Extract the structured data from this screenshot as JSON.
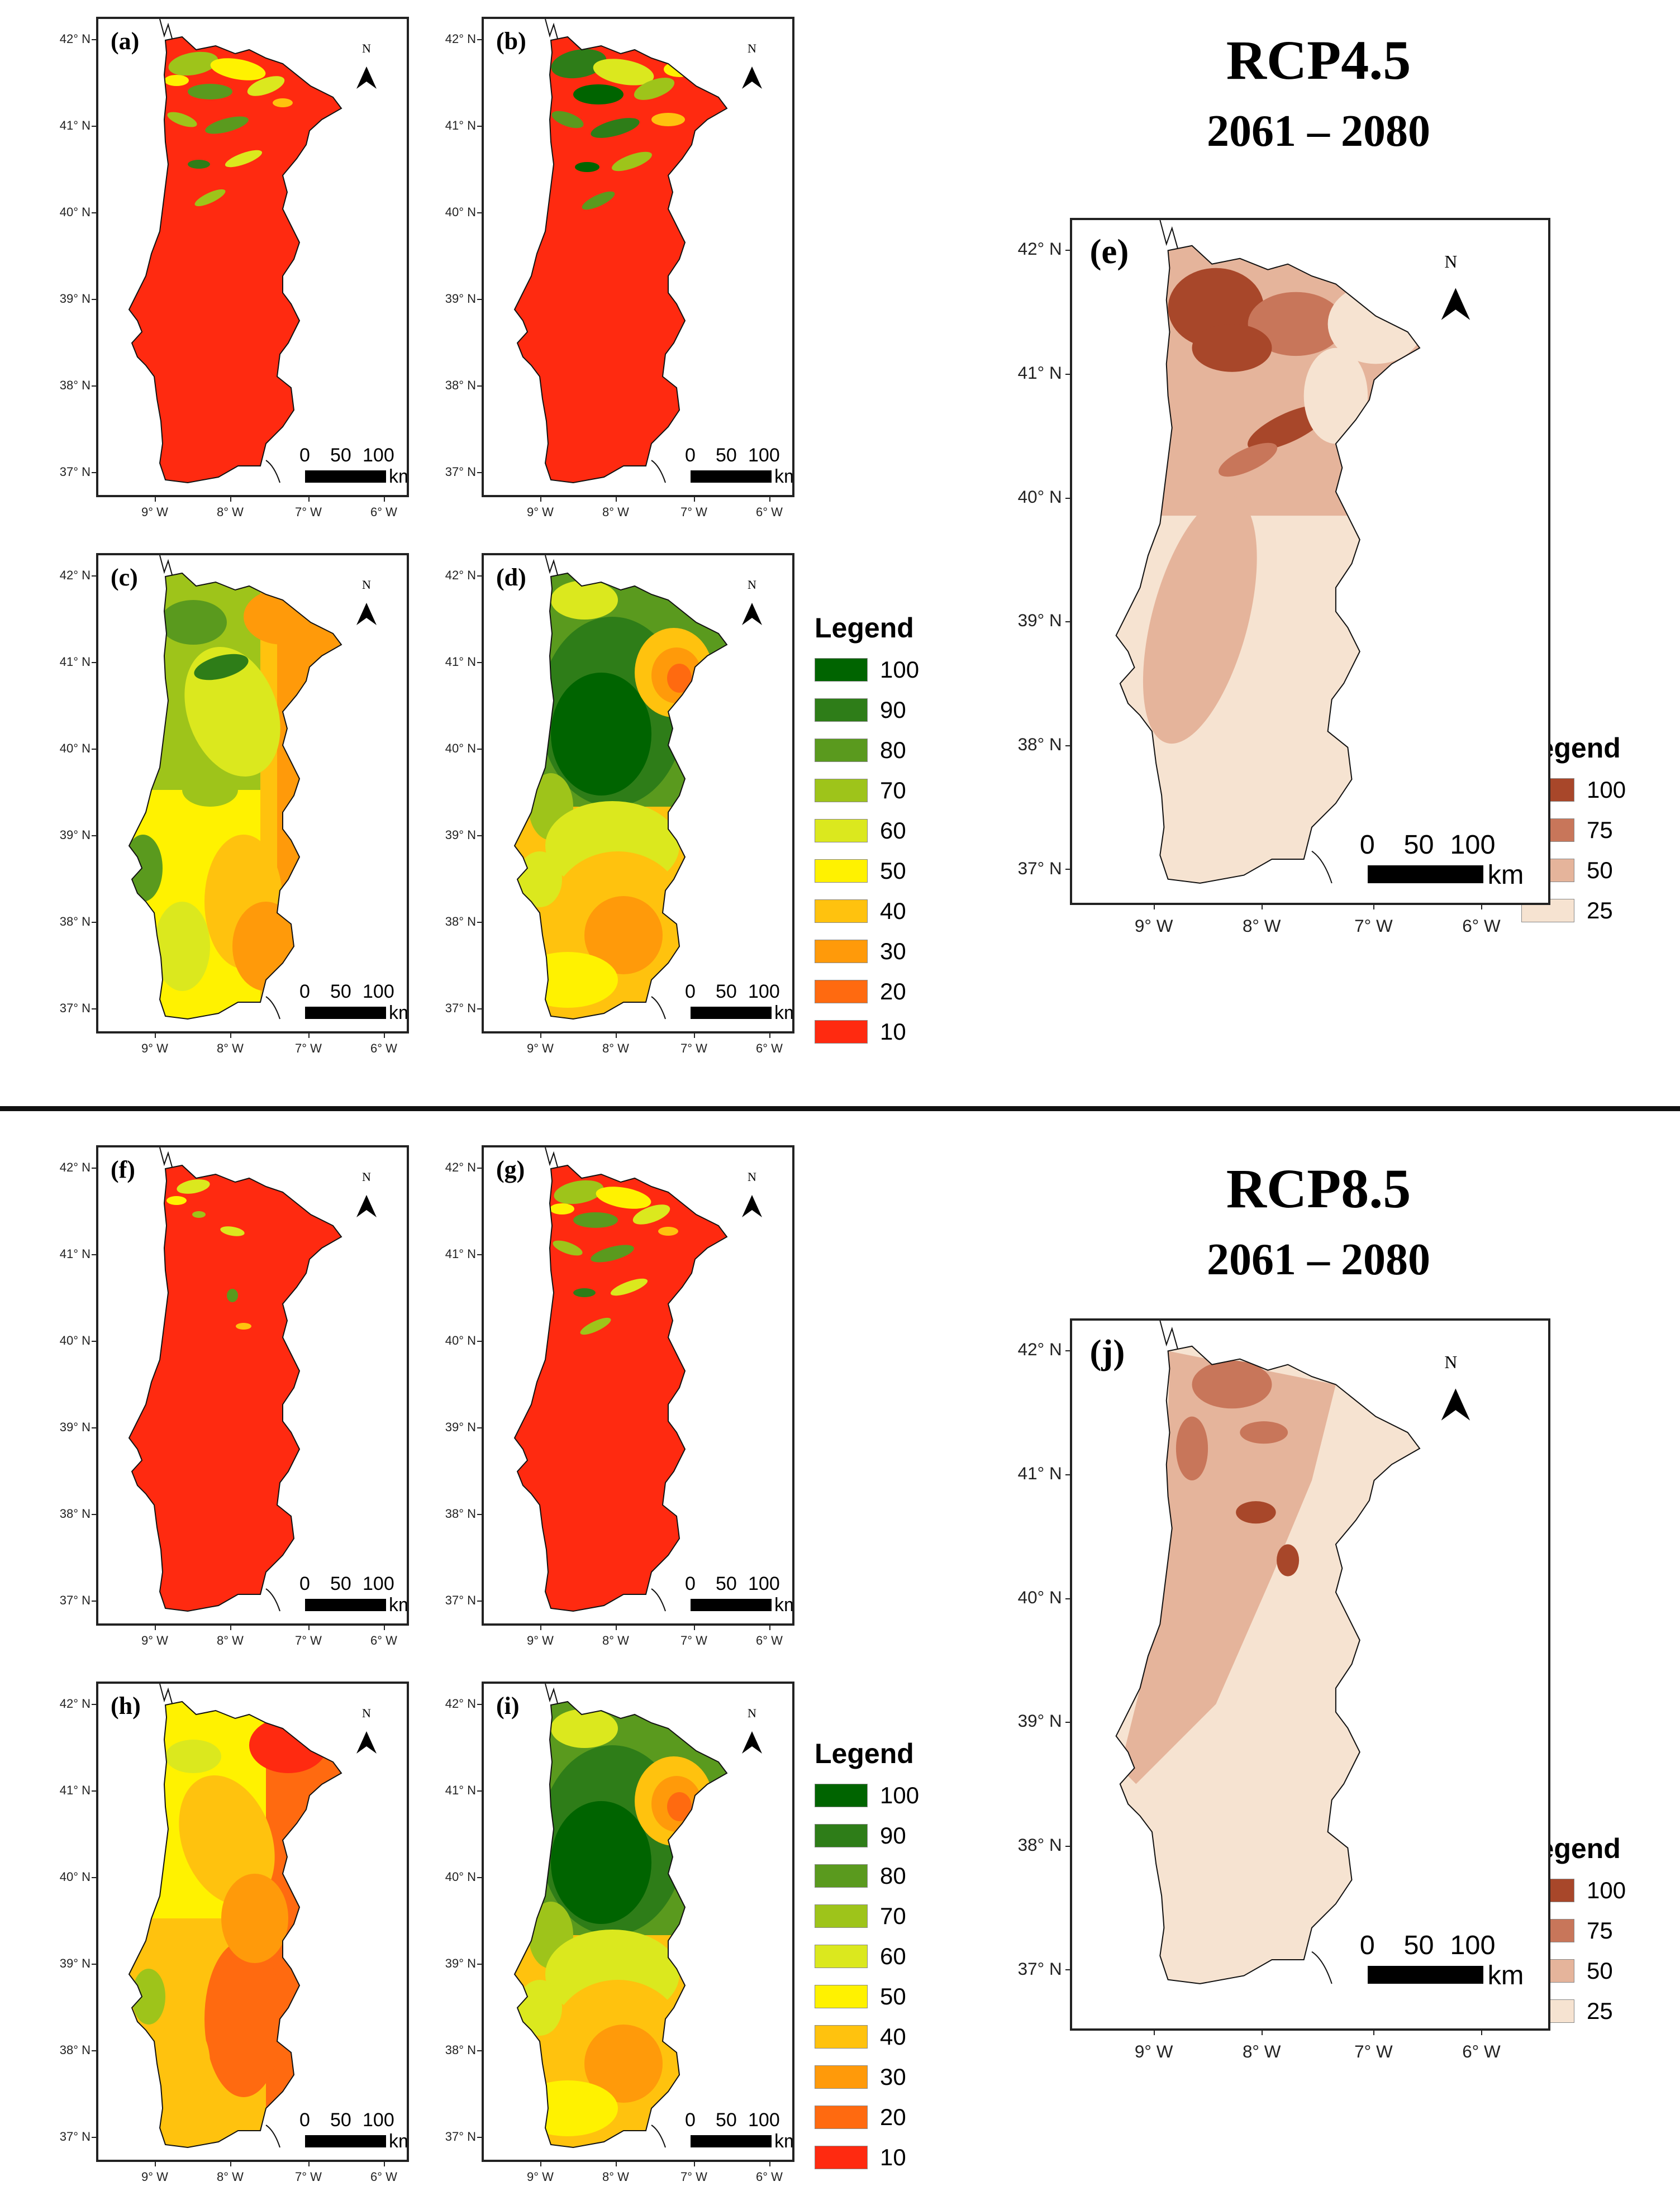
{
  "rcp45": {
    "title": "RCP4.5",
    "period": "2061 – 2080"
  },
  "rcp85": {
    "title": "RCP8.5",
    "period": "2061 –  2080"
  },
  "axes": {
    "lat_labels": [
      "42° N",
      "41° N",
      "40° N",
      "39° N",
      "38° N",
      "37° N"
    ],
    "lon_labels": [
      "9° W",
      "8° W",
      "7° W",
      "6° W"
    ]
  },
  "north": "N",
  "scale": {
    "zero": "0",
    "mid": "50",
    "end": "100",
    "unit": "km"
  },
  "panels": [
    {
      "id": "a",
      "label": "(a)",
      "scheme": "suit",
      "pattern": "red_mountain_green"
    },
    {
      "id": "b",
      "label": "(b)",
      "scheme": "suit",
      "pattern": "red_mountain_green_more"
    },
    {
      "id": "c",
      "label": "(c)",
      "scheme": "suit",
      "pattern": "gradient_yellow_orange"
    },
    {
      "id": "d",
      "label": "(d)",
      "scheme": "suit",
      "pattern": "smooth_green_north"
    },
    {
      "id": "e",
      "label": "(e)",
      "scheme": "agree",
      "pattern": "agree_north"
    },
    {
      "id": "f",
      "label": "(f)",
      "scheme": "suit",
      "pattern": "red_mostly"
    },
    {
      "id": "g",
      "label": "(g)",
      "scheme": "suit",
      "pattern": "red_mountain_green"
    },
    {
      "id": "h",
      "label": "(h)",
      "scheme": "suit",
      "pattern": "gradient_orange"
    },
    {
      "id": "i",
      "label": "(i)",
      "scheme": "suit",
      "pattern": "smooth_green_north"
    },
    {
      "id": "j",
      "label": "(j)",
      "scheme": "agree",
      "pattern": "agree_coast"
    }
  ],
  "legend_suit": {
    "title": "Legend",
    "items": [
      {
        "value": "100",
        "color": "#006400"
      },
      {
        "value": "90",
        "color": "#2e7d18"
      },
      {
        "value": "80",
        "color": "#5a9a1e"
      },
      {
        "value": "70",
        "color": "#9ec41a"
      },
      {
        "value": "60",
        "color": "#dbe81e"
      },
      {
        "value": "50",
        "color": "#fff200"
      },
      {
        "value": "40",
        "color": "#ffc20e"
      },
      {
        "value": "30",
        "color": "#ff9a0a"
      },
      {
        "value": "20",
        "color": "#ff6a10"
      },
      {
        "value": "10",
        "color": "#ff2a10"
      }
    ]
  },
  "legend_agree": {
    "title": "Legend",
    "items": [
      {
        "value": "100",
        "color": "#a8472a"
      },
      {
        "value": "75",
        "color": "#c8765a"
      },
      {
        "value": "50",
        "color": "#e5b49b"
      },
      {
        "value": "25",
        "color": "#f6e3d1"
      }
    ]
  }
}
